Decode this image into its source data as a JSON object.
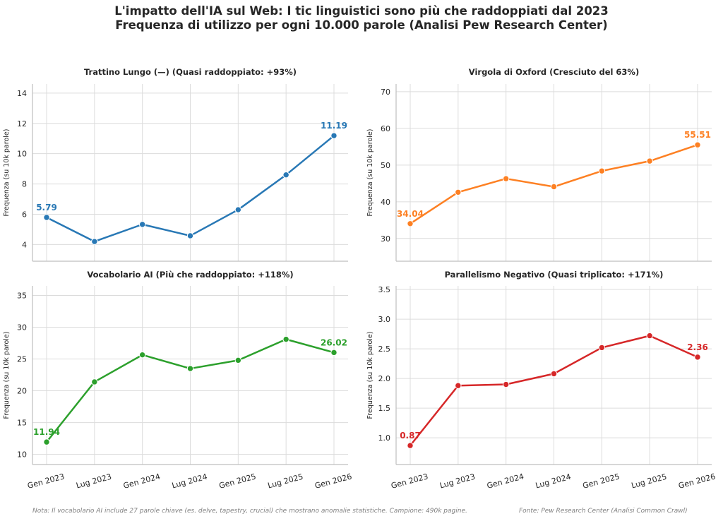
{
  "figure": {
    "title_line1": "L'impatto dell'IA sul Web: I tic linguistici sono più che raddoppiati dal 2023",
    "title_line2": "Frequenza di utilizzo per ogni 10.000 parole (Analisi Pew Research Center)",
    "note": "Nota: Il vocabolario AI include 27 parole chiave (es. delve, tapestry, crucial) che mostrano anomalie statistiche. Campione: 490k pagine.",
    "source": "Fonte: Pew Research Center (Analisi Common Crawl)"
  },
  "chart_data": [
    {
      "type": "line",
      "title": "Trattino Lungo (—) (Quasi raddoppiato: +93%)",
      "ylabel": "Frequenza (su 10k parole)",
      "categories": [
        "Gen 2023",
        "Lug 2023",
        "Gen 2024",
        "Lug 2024",
        "Gen 2025",
        "Lug 2025",
        "Gen 2026"
      ],
      "values": [
        5.79,
        4.2,
        5.33,
        4.58,
        6.3,
        8.6,
        11.19
      ],
      "yticks": [
        4,
        6,
        8,
        10,
        12,
        14
      ],
      "ylim": [
        2.9,
        14.6
      ],
      "color": "#2878b5",
      "first_label": "5.79",
      "last_label": "11.19",
      "grid": true
    },
    {
      "type": "line",
      "title": "Virgola di Oxford (Cresciuto del 63%)",
      "ylabel": "Frequenza (su 10k parole)",
      "categories": [
        "Gen 2023",
        "Lug 2023",
        "Gen 2024",
        "Lug 2024",
        "Gen 2025",
        "Lug 2025",
        "Gen 2026"
      ],
      "values": [
        34.04,
        42.6,
        46.3,
        44.1,
        48.4,
        51.1,
        55.51
      ],
      "yticks": [
        30,
        40,
        50,
        60,
        70
      ],
      "ylim": [
        23.8,
        72.1
      ],
      "color": "#fd8023",
      "first_label": "34.04",
      "last_label": "55.51",
      "grid": true
    },
    {
      "type": "line",
      "title": "Vocabolario AI (Più che raddoppiato: +118%)",
      "ylabel": "Frequenza (su 10k parole)",
      "categories": [
        "Gen 2023",
        "Lug 2023",
        "Gen 2024",
        "Lug 2024",
        "Gen 2025",
        "Lug 2025",
        "Gen 2026"
      ],
      "values": [
        11.94,
        21.4,
        25.65,
        23.5,
        24.8,
        28.1,
        26.02
      ],
      "yticks": [
        10,
        15,
        20,
        25,
        30,
        35
      ],
      "ylim": [
        8.4,
        36.5
      ],
      "color": "#2ca02c",
      "first_label": "11.94",
      "last_label": "26.02",
      "grid": true
    },
    {
      "type": "line",
      "title": "Parallelismo Negativo (Quasi triplicato: +171%)",
      "ylabel": "Frequenza (su 10k parole)",
      "categories": [
        "Gen 2023",
        "Lug 2023",
        "Gen 2024",
        "Lug 2024",
        "Gen 2025",
        "Lug 2025",
        "Gen 2026"
      ],
      "values": [
        0.87,
        1.88,
        1.9,
        2.08,
        2.52,
        2.72,
        2.36
      ],
      "yticks": [
        1.0,
        1.5,
        2.0,
        2.5,
        3.0,
        3.5
      ],
      "ylim": [
        0.55,
        3.56
      ],
      "color": "#d62728",
      "first_label": "0.87",
      "last_label": "2.36",
      "grid": true
    }
  ]
}
